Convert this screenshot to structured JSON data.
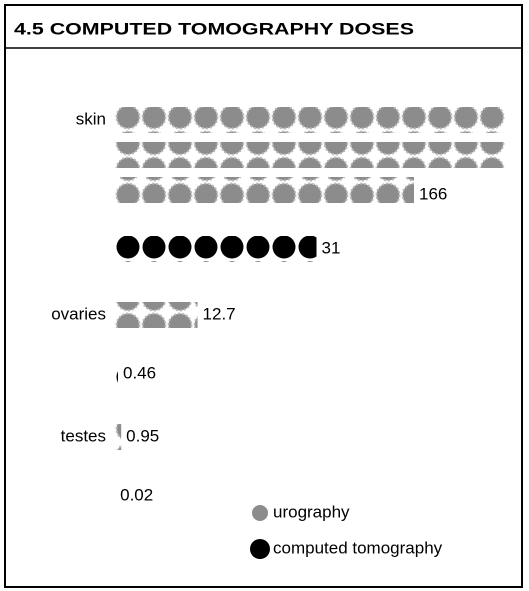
{
  "chart_data": {
    "type": "pictogram",
    "title": "4.5 COMPUTED TOMOGRAPHY DOSES",
    "categories": [
      "skin",
      "ovaries",
      "testes"
    ],
    "series": [
      {
        "name": "urography",
        "color": "#8c8c8c",
        "values": [
          166,
          12.7,
          0.95
        ]
      },
      {
        "name": "computed tomography",
        "color": "#000000",
        "values": [
          31,
          0.46,
          0.02
        ]
      }
    ]
  }
}
